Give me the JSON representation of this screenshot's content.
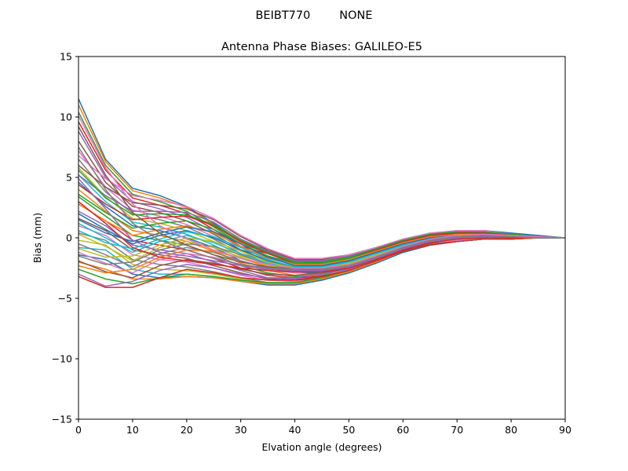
{
  "suptitle": "BEIBT770        NONE",
  "chart_data": {
    "type": "line",
    "title": "Antenna Phase Biases: GALILEO-E5",
    "xlabel": "Elvation angle (degrees)",
    "ylabel": "Bias (mm)",
    "xlim": [
      0,
      90
    ],
    "ylim": [
      -15,
      15
    ],
    "xticks": [
      0,
      10,
      20,
      30,
      40,
      50,
      60,
      70,
      80,
      90
    ],
    "yticks": [
      -15,
      -10,
      -5,
      0,
      5,
      10,
      15
    ],
    "x": [
      0,
      5,
      10,
      15,
      20,
      25,
      30,
      35,
      40,
      45,
      50,
      55,
      60,
      65,
      70,
      75,
      80,
      85,
      90
    ],
    "legend": "none",
    "grid": false,
    "color_cycle": [
      "#1f77b4",
      "#ff7f0e",
      "#2ca02c",
      "#d62728",
      "#9467bd",
      "#8c564b",
      "#e377c2",
      "#7f7f7f",
      "#bcbd22",
      "#17becf"
    ],
    "series": [
      {
        "values": [
          11.5,
          6.5,
          4.1,
          3.5,
          2.6,
          1.2,
          -0.3,
          -1.0,
          -1.8,
          -1.9,
          -1.6,
          -1.0,
          -0.3,
          0.3,
          0.6,
          0.6,
          0.4,
          0.2,
          0.0
        ]
      },
      {
        "values": [
          11.0,
          6.3,
          3.9,
          3.3,
          2.5,
          1.1,
          -0.4,
          -1.1,
          -1.9,
          -2.0,
          -1.7,
          -1.1,
          -0.4,
          0.2,
          0.5,
          0.5,
          0.3,
          0.1,
          0.0
        ]
      },
      {
        "values": [
          10.4,
          6.0,
          3.6,
          3.0,
          2.2,
          0.9,
          -0.5,
          -1.2,
          -2.0,
          -2.1,
          -1.8,
          -1.1,
          -0.4,
          0.2,
          0.5,
          0.5,
          0.3,
          0.1,
          0.0
        ]
      },
      {
        "values": [
          9.6,
          5.6,
          3.3,
          2.7,
          2.0,
          0.7,
          -0.7,
          -1.3,
          -2.1,
          -2.2,
          -1.9,
          -1.2,
          -0.5,
          0.1,
          0.4,
          0.4,
          0.3,
          0.1,
          0.0
        ]
      },
      {
        "values": [
          8.8,
          5.0,
          3.0,
          2.4,
          1.7,
          0.5,
          -0.8,
          -1.5,
          -2.2,
          -2.3,
          -2.0,
          -1.3,
          -0.5,
          0.1,
          0.4,
          0.4,
          0.2,
          0.1,
          0.0
        ]
      },
      {
        "values": [
          8.0,
          4.6,
          2.6,
          2.1,
          1.4,
          0.3,
          -1.0,
          -1.6,
          -2.3,
          -2.4,
          -2.1,
          -1.4,
          -0.6,
          0.0,
          0.3,
          0.3,
          0.2,
          0.1,
          0.0
        ]
      },
      {
        "values": [
          7.2,
          4.2,
          2.3,
          1.8,
          1.1,
          0.1,
          -1.1,
          -1.8,
          -2.4,
          -2.5,
          -2.2,
          -1.5,
          -0.7,
          0.0,
          0.3,
          0.3,
          0.2,
          0.1,
          0.0
        ]
      },
      {
        "values": [
          6.5,
          3.8,
          2.0,
          1.5,
          0.9,
          -0.1,
          -1.3,
          -1.9,
          -2.5,
          -2.6,
          -2.3,
          -1.6,
          -0.8,
          -0.1,
          0.2,
          0.3,
          0.2,
          0.1,
          0.0
        ]
      },
      {
        "values": [
          5.8,
          3.4,
          1.6,
          1.2,
          0.6,
          -0.3,
          -1.5,
          -2.1,
          -2.6,
          -2.7,
          -2.4,
          -1.7,
          -0.9,
          -0.1,
          0.2,
          0.2,
          0.2,
          0.1,
          0.0
        ]
      },
      {
        "values": [
          5.2,
          3.0,
          1.3,
          0.9,
          0.3,
          -0.6,
          -1.7,
          -2.3,
          -2.8,
          -2.8,
          -2.5,
          -1.8,
          -1.0,
          -0.2,
          0.1,
          0.2,
          0.1,
          0.1,
          0.0
        ]
      },
      {
        "values": [
          4.6,
          2.6,
          1.0,
          0.6,
          0.0,
          -0.8,
          -1.9,
          -2.5,
          -2.9,
          -2.9,
          -2.6,
          -1.9,
          -1.0,
          -0.3,
          0.1,
          0.2,
          0.1,
          0.1,
          0.0
        ]
      },
      {
        "values": [
          4.0,
          2.2,
          0.6,
          0.2,
          -0.3,
          -1.1,
          -2.1,
          -2.7,
          -3.1,
          -3.0,
          -2.7,
          -2.0,
          -1.1,
          -0.4,
          0.0,
          0.1,
          0.1,
          0.1,
          0.0
        ]
      },
      {
        "values": [
          3.4,
          1.8,
          0.2,
          -0.2,
          -0.6,
          -1.4,
          -2.3,
          -2.9,
          -3.2,
          -3.1,
          -2.8,
          -2.0,
          -1.1,
          -0.5,
          -0.1,
          0.1,
          0.1,
          0.0,
          0.0
        ]
      },
      {
        "values": [
          2.8,
          1.4,
          -0.2,
          -0.6,
          -1.0,
          -1.7,
          -2.5,
          -3.1,
          -3.3,
          -3.2,
          -2.8,
          -2.1,
          -1.2,
          -0.5,
          -0.2,
          0.0,
          0.0,
          0.0,
          0.0
        ]
      },
      {
        "values": [
          2.2,
          1.0,
          -0.6,
          -1.0,
          -1.3,
          -2.0,
          -2.7,
          -3.3,
          -3.4,
          -3.3,
          -2.9,
          -2.1,
          -1.2,
          -0.6,
          -0.2,
          0.0,
          0.0,
          0.0,
          0.0
        ]
      },
      {
        "values": [
          1.6,
          0.6,
          -1.0,
          -1.4,
          -1.7,
          -2.3,
          -2.9,
          -3.4,
          -3.5,
          -3.4,
          -2.9,
          -2.1,
          -1.2,
          -0.6,
          -0.2,
          -0.1,
          0.0,
          0.0,
          0.0
        ]
      },
      {
        "values": [
          1.0,
          0.2,
          -1.4,
          -1.8,
          -2.0,
          -2.5,
          -3.1,
          -3.5,
          -3.6,
          -3.4,
          -2.9,
          -2.1,
          -1.2,
          -0.6,
          -0.3,
          -0.1,
          0.0,
          0.0,
          0.0
        ]
      },
      {
        "values": [
          0.4,
          -0.2,
          -1.8,
          -2.2,
          -2.4,
          -2.8,
          -3.3,
          -3.7,
          -3.7,
          -3.5,
          -2.9,
          -2.1,
          -1.2,
          -0.6,
          -0.3,
          -0.1,
          -0.1,
          0.0,
          0.0
        ]
      },
      {
        "values": [
          -0.2,
          -0.6,
          -2.2,
          -2.6,
          -2.7,
          -3.0,
          -3.4,
          -3.8,
          -3.8,
          -3.5,
          -2.9,
          -2.1,
          -1.2,
          -0.6,
          -0.3,
          -0.1,
          -0.1,
          0.0,
          0.0
        ]
      },
      {
        "values": [
          -0.8,
          -1.0,
          -2.6,
          -3.0,
          -3.0,
          -3.2,
          -3.6,
          -3.9,
          -3.9,
          -3.5,
          -2.9,
          -2.1,
          -1.2,
          -0.6,
          -0.3,
          -0.1,
          -0.1,
          0.0,
          0.0
        ]
      },
      {
        "values": [
          -1.4,
          -1.8,
          -3.0,
          -3.3,
          -3.2,
          -3.3,
          -3.6,
          -3.9,
          -3.9,
          -3.5,
          -2.9,
          -2.1,
          -1.2,
          -0.6,
          -0.3,
          -0.1,
          -0.1,
          0.0,
          0.0
        ]
      },
      {
        "values": [
          -2.0,
          -2.6,
          -3.4,
          -3.4,
          -3.2,
          -3.3,
          -3.6,
          -3.8,
          -3.8,
          -3.4,
          -2.8,
          -2.0,
          -1.1,
          -0.6,
          -0.3,
          -0.1,
          -0.1,
          0.0,
          0.0
        ]
      },
      {
        "values": [
          -2.6,
          -3.4,
          -3.8,
          -3.3,
          -3.0,
          -3.2,
          -3.5,
          -3.7,
          -3.7,
          -3.3,
          -2.7,
          -1.9,
          -1.1,
          -0.6,
          -0.3,
          -0.1,
          -0.1,
          0.0,
          0.0
        ]
      },
      {
        "values": [
          -3.2,
          -4.1,
          -4.1,
          -3.3,
          -2.6,
          -2.9,
          -3.3,
          -3.5,
          -3.5,
          -3.2,
          -2.7,
          -1.9,
          -1.1,
          -0.6,
          -0.3,
          -0.1,
          -0.1,
          0.0,
          0.0
        ]
      },
      {
        "values": [
          -3.0,
          -4.0,
          -3.6,
          -2.7,
          -2.2,
          -2.5,
          -3.0,
          -3.3,
          -3.3,
          -3.0,
          -2.6,
          -1.8,
          -1.0,
          -0.5,
          -0.2,
          -0.1,
          0.0,
          0.0,
          0.0
        ]
      },
      {
        "values": [
          -1.9,
          -2.8,
          -3.3,
          -2.3,
          -1.8,
          -2.1,
          -2.6,
          -3.0,
          -3.1,
          -2.9,
          -2.5,
          -1.8,
          -1.0,
          -0.5,
          -0.2,
          -0.1,
          0.0,
          0.0,
          0.0
        ]
      },
      {
        "values": [
          -1.2,
          -2.1,
          -2.9,
          -1.8,
          -1.3,
          -1.6,
          -2.2,
          -2.7,
          -2.9,
          -2.7,
          -2.3,
          -1.6,
          -0.9,
          -0.4,
          -0.2,
          0.0,
          0.0,
          0.0,
          0.0
        ]
      },
      {
        "values": [
          -0.5,
          -1.4,
          -2.4,
          -1.3,
          -0.8,
          -1.2,
          -1.9,
          -2.5,
          -2.7,
          -2.6,
          -2.2,
          -1.5,
          -0.8,
          -0.3,
          -0.1,
          0.0,
          0.0,
          0.0,
          0.0
        ]
      },
      {
        "values": [
          0.3,
          -0.7,
          -1.9,
          -0.8,
          -0.3,
          -0.8,
          -1.6,
          -2.3,
          -2.6,
          -2.5,
          -2.1,
          -1.4,
          -0.7,
          -0.2,
          0.0,
          0.1,
          0.0,
          0.0,
          0.0
        ]
      },
      {
        "values": [
          1.2,
          0.0,
          -1.2,
          -0.3,
          0.2,
          -0.4,
          -1.3,
          -2.1,
          -2.5,
          -2.4,
          -2.0,
          -1.3,
          -0.6,
          -0.1,
          0.1,
          0.1,
          0.1,
          0.0,
          0.0
        ]
      },
      {
        "values": [
          2.0,
          0.7,
          -0.5,
          0.2,
          0.6,
          0.0,
          -1.0,
          -1.9,
          -2.4,
          -2.3,
          -1.9,
          -1.2,
          -0.5,
          0.0,
          0.2,
          0.2,
          0.1,
          0.0,
          0.0
        ]
      },
      {
        "values": [
          2.8,
          1.4,
          0.2,
          0.7,
          1.0,
          0.4,
          -0.7,
          -1.7,
          -2.2,
          -2.2,
          -1.8,
          -1.1,
          -0.4,
          0.1,
          0.3,
          0.3,
          0.1,
          0.1,
          0.0
        ]
      },
      {
        "values": [
          3.6,
          2.1,
          0.8,
          1.2,
          1.4,
          0.7,
          -0.5,
          -1.5,
          -2.1,
          -2.1,
          -1.7,
          -1.0,
          -0.3,
          0.2,
          0.4,
          0.4,
          0.2,
          0.1,
          0.0
        ]
      },
      {
        "values": [
          4.4,
          2.8,
          1.5,
          1.7,
          1.8,
          1.0,
          -0.3,
          -1.3,
          -2.0,
          -2.0,
          -1.6,
          -1.0,
          -0.3,
          0.2,
          0.4,
          0.4,
          0.2,
          0.1,
          0.0
        ]
      },
      {
        "values": [
          5.2,
          3.5,
          2.2,
          2.2,
          2.1,
          1.3,
          -0.1,
          -1.1,
          -1.9,
          -1.9,
          -1.5,
          -0.9,
          -0.2,
          0.3,
          0.5,
          0.5,
          0.3,
          0.1,
          0.0
        ]
      },
      {
        "values": [
          6.0,
          4.2,
          2.9,
          2.7,
          2.4,
          1.5,
          0.1,
          -1.0,
          -1.8,
          -1.8,
          -1.4,
          -0.8,
          -0.2,
          0.3,
          0.5,
          0.5,
          0.3,
          0.1,
          0.0
        ]
      },
      {
        "values": [
          6.8,
          4.9,
          3.5,
          3.1,
          2.6,
          1.6,
          0.2,
          -0.9,
          -1.7,
          -1.7,
          -1.4,
          -0.8,
          -0.1,
          0.4,
          0.6,
          0.6,
          0.3,
          0.1,
          0.0
        ]
      },
      {
        "values": [
          -1.5,
          -2.2,
          -2.0,
          -1.0,
          -0.5,
          -0.7,
          -1.4,
          -2.2,
          -2.6,
          -2.6,
          -2.2,
          -1.5,
          -0.8,
          -0.3,
          -0.1,
          0.0,
          0.0,
          0.0,
          0.0
        ]
      },
      {
        "values": [
          -0.9,
          -1.6,
          -1.5,
          -0.6,
          0.0,
          -0.3,
          -1.1,
          -2.0,
          -2.5,
          -2.5,
          -2.1,
          -1.4,
          -0.7,
          -0.2,
          0.0,
          0.1,
          0.0,
          0.0,
          0.0
        ]
      },
      {
        "values": [
          0.6,
          -0.4,
          -0.9,
          -0.1,
          0.5,
          0.1,
          -0.8,
          -1.8,
          -2.4,
          -2.4,
          -2.0,
          -1.3,
          -0.6,
          -0.1,
          0.1,
          0.1,
          0.1,
          0.0,
          0.0
        ]
      },
      {
        "values": [
          1.5,
          0.4,
          -0.3,
          0.4,
          0.9,
          0.5,
          -0.5,
          -1.6,
          -2.3,
          -2.3,
          -1.9,
          -1.2,
          -0.5,
          0.0,
          0.2,
          0.2,
          0.1,
          0.0,
          0.0
        ]
      },
      {
        "values": [
          -2.3,
          -2.9,
          -2.6,
          -1.6,
          -1.0,
          -1.1,
          -1.7,
          -2.4,
          -2.8,
          -2.7,
          -2.3,
          -1.6,
          -0.8,
          -0.3,
          -0.1,
          0.0,
          0.0,
          0.0,
          0.0
        ]
      },
      {
        "values": [
          5.6,
          3.3,
          1.9,
          2.0,
          1.9,
          1.1,
          -0.2,
          -1.2,
          -2.0,
          -2.0,
          -1.6,
          -0.9,
          -0.2,
          0.3,
          0.5,
          0.5,
          0.3,
          0.1,
          0.0
        ]
      },
      {
        "values": [
          3.0,
          1.2,
          -0.8,
          -1.6,
          -1.9,
          -2.2,
          -2.5,
          -2.7,
          -2.8,
          -2.8,
          -2.5,
          -1.8,
          -1.0,
          -0.4,
          -0.1,
          0.0,
          0.0,
          0.0,
          0.0
        ]
      },
      {
        "values": [
          4.9,
          2.4,
          -0.2,
          -1.2,
          -1.5,
          -1.9,
          -2.3,
          -2.6,
          -2.7,
          -2.7,
          -2.4,
          -1.7,
          -0.9,
          -0.3,
          0.0,
          0.1,
          0.1,
          0.0,
          0.0
        ]
      },
      {
        "values": [
          9.2,
          5.2,
          2.1,
          0.4,
          -0.6,
          -1.4,
          -2.0,
          -2.4,
          -2.6,
          -2.6,
          -2.3,
          -1.6,
          -0.8,
          -0.2,
          0.1,
          0.2,
          0.1,
          0.0,
          0.0
        ]
      },
      {
        "values": [
          10.1,
          5.8,
          2.8,
          1.0,
          -0.1,
          -1.0,
          -1.7,
          -2.2,
          -2.5,
          -2.5,
          -2.2,
          -1.5,
          -0.7,
          -0.1,
          0.2,
          0.3,
          0.2,
          0.1,
          0.0
        ]
      },
      {
        "values": [
          7.5,
          4.0,
          1.2,
          -0.2,
          -1.0,
          -1.7,
          -2.2,
          -2.5,
          -2.6,
          -2.6,
          -2.3,
          -1.6,
          -0.8,
          -0.2,
          0.1,
          0.2,
          0.1,
          0.0,
          0.0
        ]
      }
    ]
  }
}
